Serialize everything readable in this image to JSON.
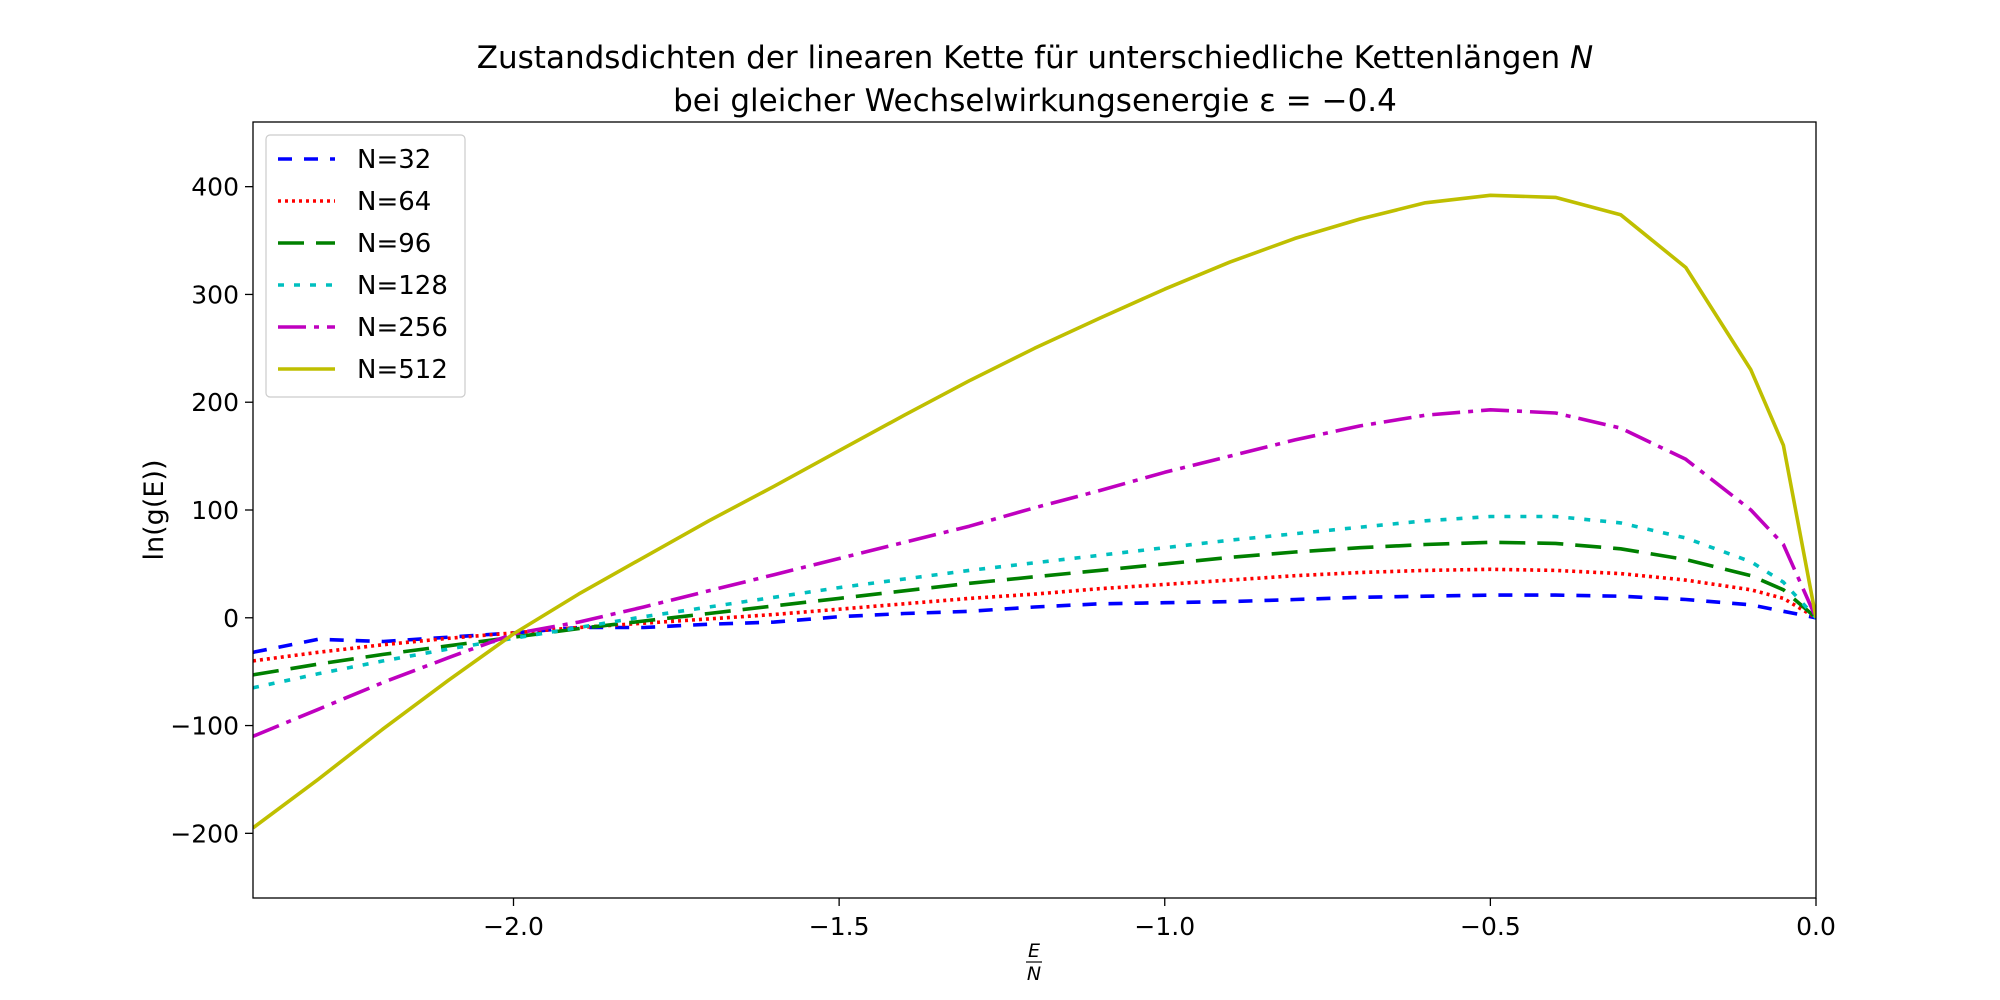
{
  "chart_data": {
    "type": "line",
    "title": "Zustandsdichten der linearen Kette für unterschiedliche Kettenlängen N",
    "title_italic_symbol": "N",
    "subtitle": "bei gleicher Wechselwirkungsenergie ε = −0.4",
    "xlabel_num": "E",
    "xlabel_den": "N",
    "ylabel": "ln(g(E))",
    "xlim": [
      -2.4,
      0.0
    ],
    "ylim": [
      -260,
      460
    ],
    "xticks": [
      -2.0,
      -1.5,
      -1.0,
      -0.5,
      0.0
    ],
    "xtick_labels": [
      "−2.0",
      "−1.5",
      "−1.0",
      "−0.5",
      "0.0"
    ],
    "yticks": [
      -200,
      -100,
      0,
      100,
      200,
      300,
      400
    ],
    "ytick_labels": [
      "−200",
      "−100",
      "0",
      "100",
      "200",
      "300",
      "400"
    ],
    "grid": false,
    "legend_position": "upper-left",
    "series": [
      {
        "name": "N=32",
        "color": "#0000ff",
        "dash": "14,12",
        "x": [
          -2.4,
          -2.3,
          -2.2,
          -2.1,
          -2.0,
          -1.9,
          -1.8,
          -1.7,
          -1.6,
          -1.5,
          -1.4,
          -1.3,
          -1.2,
          -1.1,
          -1.0,
          -0.9,
          -0.8,
          -0.7,
          -0.6,
          -0.5,
          -0.4,
          -0.3,
          -0.2,
          -0.1,
          -0.05,
          0.0
        ],
        "y": [
          -32,
          -20,
          -22,
          -18,
          -14,
          -9,
          -9,
          -6,
          -4,
          1,
          4,
          6,
          10,
          13,
          14,
          15,
          17,
          19,
          20,
          21,
          21,
          20,
          17,
          12,
          6,
          0
        ]
      },
      {
        "name": "N=64",
        "color": "#ff0000",
        "dash": "3,4",
        "x": [
          -2.4,
          -2.3,
          -2.2,
          -2.1,
          -2.0,
          -1.9,
          -1.8,
          -1.7,
          -1.6,
          -1.5,
          -1.4,
          -1.3,
          -1.2,
          -1.1,
          -1.0,
          -0.9,
          -0.8,
          -0.7,
          -0.6,
          -0.5,
          -0.4,
          -0.3,
          -0.2,
          -0.1,
          -0.05,
          0.0
        ],
        "y": [
          -40,
          -32,
          -25,
          -19,
          -14,
          -9,
          -5,
          -1,
          3,
          8,
          13,
          18,
          22,
          27,
          31,
          35,
          39,
          42,
          44,
          45,
          44,
          41,
          35,
          26,
          18,
          0
        ]
      },
      {
        "name": "N=96",
        "color": "#008000",
        "dash": "26,12",
        "x": [
          -2.4,
          -2.3,
          -2.2,
          -2.1,
          -2.0,
          -1.9,
          -1.8,
          -1.7,
          -1.6,
          -1.5,
          -1.4,
          -1.3,
          -1.2,
          -1.1,
          -1.0,
          -0.9,
          -0.8,
          -0.7,
          -0.6,
          -0.5,
          -0.4,
          -0.3,
          -0.2,
          -0.1,
          -0.05,
          0.0
        ],
        "y": [
          -53,
          -43,
          -34,
          -26,
          -18,
          -10,
          -3,
          4,
          11,
          18,
          25,
          32,
          38,
          44,
          50,
          56,
          61,
          65,
          68,
          70,
          69,
          64,
          54,
          39,
          26,
          0
        ]
      },
      {
        "name": "N=128",
        "color": "#00bfbf",
        "dash": "6,10",
        "x": [
          -2.4,
          -2.3,
          -2.2,
          -2.1,
          -2.0,
          -1.9,
          -1.8,
          -1.7,
          -1.6,
          -1.5,
          -1.4,
          -1.3,
          -1.2,
          -1.1,
          -1.0,
          -0.9,
          -0.8,
          -0.7,
          -0.6,
          -0.5,
          -0.4,
          -0.3,
          -0.2,
          -0.1,
          -0.05,
          0.0
        ],
        "y": [
          -65,
          -52,
          -40,
          -29,
          -19,
          -9,
          1,
          10,
          19,
          28,
          36,
          44,
          51,
          58,
          65,
          72,
          78,
          84,
          90,
          94,
          94,
          88,
          74,
          52,
          33,
          0
        ]
      },
      {
        "name": "N=256",
        "color": "#bf00bf",
        "dash": "28,8,5,8",
        "x": [
          -2.4,
          -2.3,
          -2.2,
          -2.1,
          -2.0,
          -1.9,
          -1.8,
          -1.7,
          -1.6,
          -1.5,
          -1.4,
          -1.3,
          -1.2,
          -1.1,
          -1.0,
          -0.9,
          -0.8,
          -0.7,
          -0.6,
          -0.5,
          -0.4,
          -0.3,
          -0.2,
          -0.1,
          -0.05,
          0.0
        ],
        "y": [
          -110,
          -85,
          -60,
          -37,
          -15,
          -4,
          10,
          25,
          40,
          55,
          70,
          85,
          102,
          118,
          135,
          150,
          165,
          178,
          188,
          193,
          190,
          176,
          147,
          100,
          68,
          0
        ]
      },
      {
        "name": "N=512",
        "color": "#bfbf00",
        "dash": "",
        "x": [
          -2.4,
          -2.3,
          -2.2,
          -2.1,
          -2.0,
          -1.9,
          -1.8,
          -1.7,
          -1.6,
          -1.5,
          -1.4,
          -1.3,
          -1.2,
          -1.1,
          -1.0,
          -0.9,
          -0.8,
          -0.7,
          -0.6,
          -0.5,
          -0.4,
          -0.3,
          -0.2,
          -0.1,
          -0.05,
          0.0
        ],
        "y": [
          -195,
          -150,
          -103,
          -58,
          -15,
          22,
          56,
          90,
          122,
          155,
          188,
          220,
          250,
          278,
          305,
          330,
          352,
          370,
          385,
          392,
          390,
          374,
          325,
          230,
          160,
          0
        ]
      }
    ]
  }
}
